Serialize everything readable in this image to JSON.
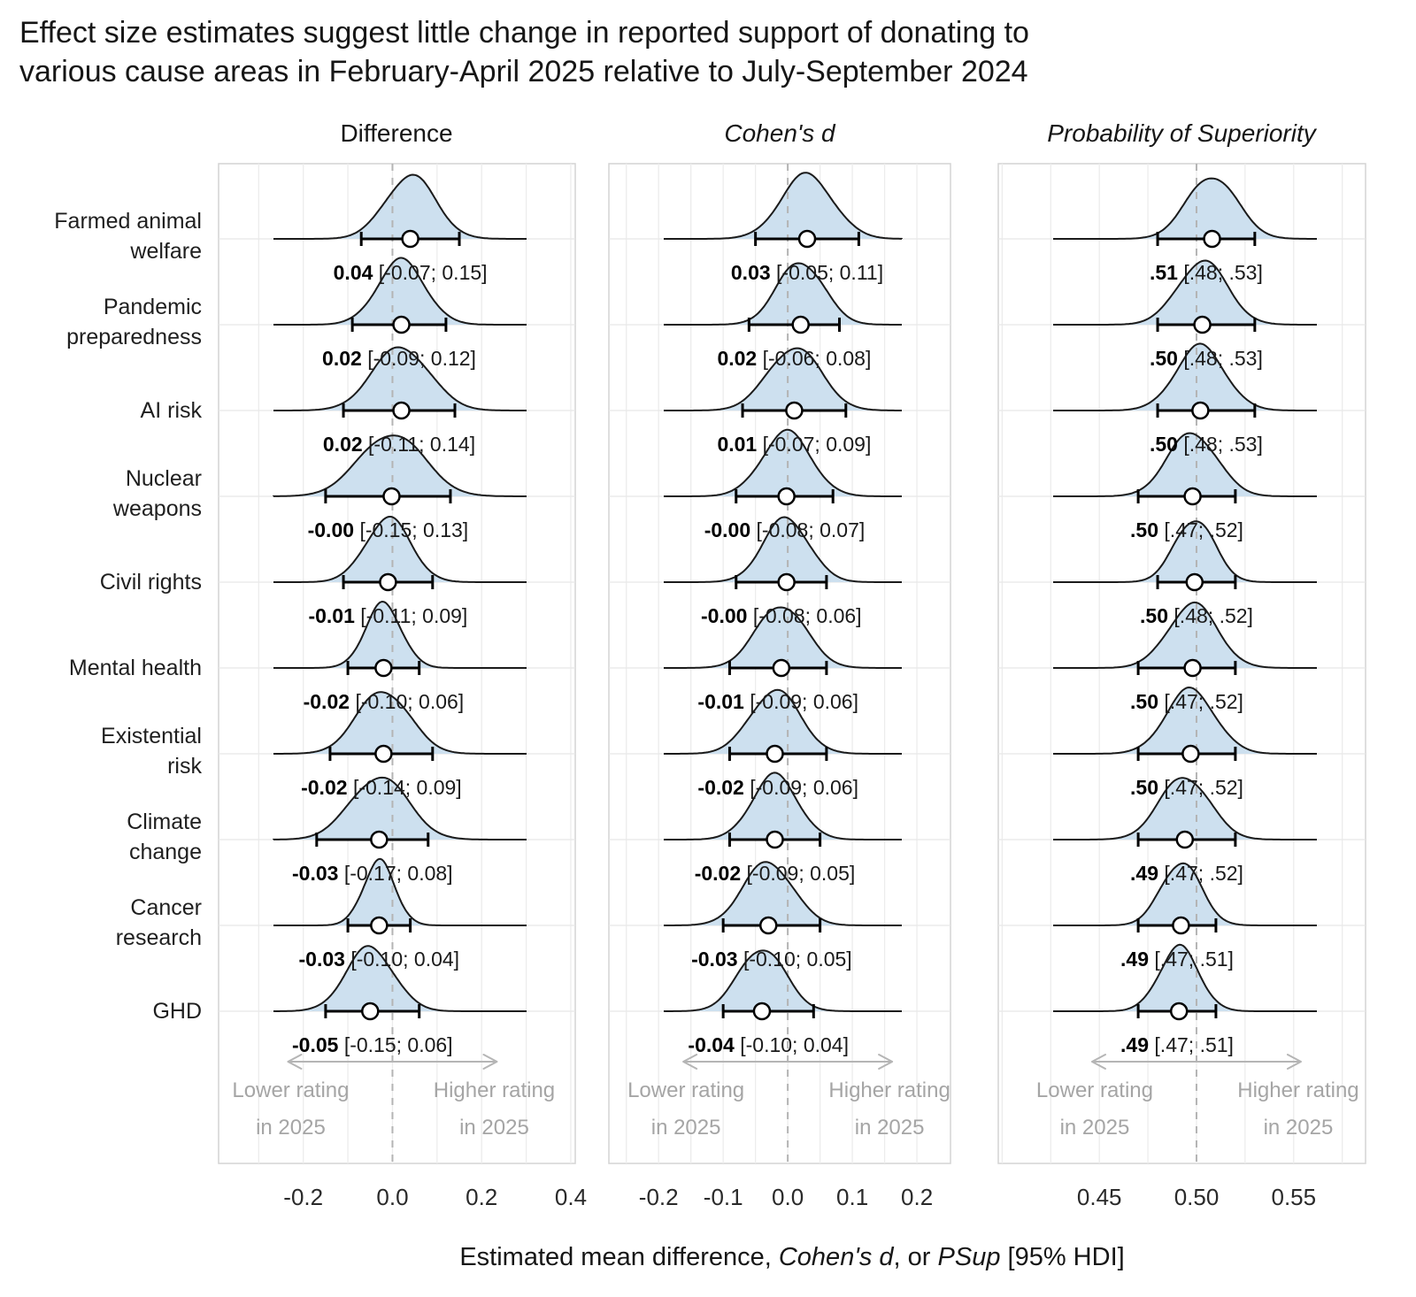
{
  "title": {
    "line1": "Effect size estimates suggest little change in reported support of donating to",
    "line2": "various cause areas in February-April 2025 relative to July-September 2024"
  },
  "axis_title": {
    "parts": [
      {
        "text": "Estimated mean difference, ",
        "italic": false
      },
      {
        "text": "Cohen's d",
        "italic": true
      },
      {
        "text": ", or ",
        "italic": false
      },
      {
        "text": "PSup",
        "italic": true
      },
      {
        "text": " [95% HDI]",
        "italic": false
      }
    ]
  },
  "annotations": {
    "lower_line1": "Lower rating",
    "lower_line2": "in 2025",
    "higher_line1": "Higher rating",
    "higher_line2": "in 2025"
  },
  "colors": {
    "density_fill": "#cde0ef",
    "density_stroke": "#1b1b1b",
    "dash_line": "#b4b4b4",
    "grid_minor": "#ececec",
    "grid_row": "#e8e8e8",
    "panel_border": "#d4d4d4",
    "annotation_gray": "#a5a5a5",
    "arrow_gray": "#b5b5b5",
    "text_dark": "#161616",
    "point_fill": "#ffffff"
  },
  "chart_data": {
    "type": "area",
    "subtype": "ridgeline-forest-plot",
    "title": "Effect size estimates suggest little change in reported support of donating to various cause areas in February-April 2025 relative to July-September 2024",
    "xlabel": "Estimated mean difference, Cohen's d, or PSup [95% HDI]",
    "legend_position": "none",
    "grid": true,
    "rows": [
      {
        "label_lines": [
          "Farmed animal",
          "welfare"
        ]
      },
      {
        "label_lines": [
          "Pandemic",
          "preparedness"
        ]
      },
      {
        "label_lines": [
          "AI risk"
        ]
      },
      {
        "label_lines": [
          "Nuclear",
          "weapons"
        ]
      },
      {
        "label_lines": [
          "Civil rights"
        ]
      },
      {
        "label_lines": [
          "Mental health"
        ]
      },
      {
        "label_lines": [
          "Existential",
          "risk"
        ]
      },
      {
        "label_lines": [
          "Climate",
          "change"
        ]
      },
      {
        "label_lines": [
          "Cancer",
          "research"
        ]
      },
      {
        "label_lines": [
          "GHD"
        ]
      }
    ],
    "panels": [
      {
        "title": "Difference",
        "title_italic": false,
        "axis": {
          "dash_at": 0,
          "minor_step": 0.1,
          "range": [
            -0.39,
            0.41
          ],
          "ticks": [
            {
              "v": -0.2,
              "label": "-0.2"
            },
            {
              "v": 0.0,
              "label": "0.0"
            },
            {
              "v": 0.2,
              "label": "0.2"
            },
            {
              "v": 0.4,
              "label": "0.4"
            }
          ]
        },
        "values": [
          {
            "est": 0.04,
            "lo": -0.07,
            "hi": 0.15,
            "est_label": "0.04",
            "ci_label": "[-0.07; 0.15]"
          },
          {
            "est": 0.02,
            "lo": -0.09,
            "hi": 0.12,
            "est_label": "0.02",
            "ci_label": "[-0.09; 0.12]"
          },
          {
            "est": 0.02,
            "lo": -0.11,
            "hi": 0.14,
            "est_label": "0.02",
            "ci_label": "[-0.11; 0.14]"
          },
          {
            "est": -0.002,
            "lo": -0.15,
            "hi": 0.13,
            "est_label": "-0.00",
            "ci_label": "[-0.15; 0.13]"
          },
          {
            "est": -0.01,
            "lo": -0.11,
            "hi": 0.09,
            "est_label": "-0.01",
            "ci_label": "[-0.11; 0.09]"
          },
          {
            "est": -0.02,
            "lo": -0.1,
            "hi": 0.06,
            "est_label": "-0.02",
            "ci_label": "[-0.10; 0.06]"
          },
          {
            "est": -0.02,
            "lo": -0.14,
            "hi": 0.09,
            "est_label": "-0.02",
            "ci_label": "[-0.14; 0.09]"
          },
          {
            "est": -0.03,
            "lo": -0.17,
            "hi": 0.08,
            "est_label": "-0.03",
            "ci_label": "[-0.17; 0.08]"
          },
          {
            "est": -0.03,
            "lo": -0.1,
            "hi": 0.04,
            "est_label": "-0.03",
            "ci_label": "[-0.10; 0.04]"
          },
          {
            "est": -0.05,
            "lo": -0.15,
            "hi": 0.06,
            "est_label": "-0.05",
            "ci_label": "[-0.15; 0.06]"
          }
        ]
      },
      {
        "title": "Cohen's d",
        "title_italic": true,
        "axis": {
          "dash_at": 0,
          "minor_step": 0.05,
          "range": [
            -0.277,
            0.252
          ],
          "ticks": [
            {
              "v": -0.2,
              "label": "-0.2"
            },
            {
              "v": -0.1,
              "label": "-0.1"
            },
            {
              "v": 0.0,
              "label": "0.0"
            },
            {
              "v": 0.1,
              "label": "0.1"
            },
            {
              "v": 0.2,
              "label": "0.2"
            }
          ]
        },
        "values": [
          {
            "est": 0.03,
            "lo": -0.05,
            "hi": 0.11,
            "est_label": "0.03",
            "ci_label": "[-0.05; 0.11]"
          },
          {
            "est": 0.02,
            "lo": -0.06,
            "hi": 0.08,
            "est_label": "0.02",
            "ci_label": "[-0.06; 0.08]"
          },
          {
            "est": 0.01,
            "lo": -0.07,
            "hi": 0.09,
            "est_label": "0.01",
            "ci_label": "[-0.07; 0.09]"
          },
          {
            "est": -0.002,
            "lo": -0.08,
            "hi": 0.07,
            "est_label": "-0.00",
            "ci_label": "[-0.08; 0.07]"
          },
          {
            "est": -0.002,
            "lo": -0.08,
            "hi": 0.06,
            "est_label": "-0.00",
            "ci_label": "[-0.08; 0.06]"
          },
          {
            "est": -0.01,
            "lo": -0.09,
            "hi": 0.06,
            "est_label": "-0.01",
            "ci_label": "[-0.09; 0.06]"
          },
          {
            "est": -0.02,
            "lo": -0.09,
            "hi": 0.06,
            "est_label": "-0.02",
            "ci_label": "[-0.09; 0.06]"
          },
          {
            "est": -0.02,
            "lo": -0.09,
            "hi": 0.05,
            "est_label": "-0.02",
            "ci_label": "[-0.09; 0.05]"
          },
          {
            "est": -0.03,
            "lo": -0.1,
            "hi": 0.05,
            "est_label": "-0.03",
            "ci_label": "[-0.10; 0.05]"
          },
          {
            "est": -0.04,
            "lo": -0.1,
            "hi": 0.04,
            "est_label": "-0.04",
            "ci_label": "[-0.10; 0.04]"
          }
        ]
      },
      {
        "title": "Probability of Superiority",
        "title_italic": true,
        "axis": {
          "dash_at": 0.5,
          "minor_step": 0.025,
          "range": [
            0.398,
            0.587
          ],
          "ticks": [
            {
              "v": 0.45,
              "label": "0.45"
            },
            {
              "v": 0.5,
              "label": "0.50"
            },
            {
              "v": 0.55,
              "label": "0.55"
            }
          ]
        },
        "values": [
          {
            "est": 0.508,
            "lo": 0.48,
            "hi": 0.53,
            "est_label": ".51",
            "ci_label": "[.48; .53]"
          },
          {
            "est": 0.503,
            "lo": 0.48,
            "hi": 0.53,
            "est_label": ".50",
            "ci_label": "[.48; .53]"
          },
          {
            "est": 0.502,
            "lo": 0.48,
            "hi": 0.53,
            "est_label": ".50",
            "ci_label": "[.48; .53]"
          },
          {
            "est": 0.498,
            "lo": 0.47,
            "hi": 0.52,
            "est_label": ".50",
            "ci_label": "[.47; .52]"
          },
          {
            "est": 0.499,
            "lo": 0.48,
            "hi": 0.52,
            "est_label": ".50",
            "ci_label": "[.48; .52]"
          },
          {
            "est": 0.498,
            "lo": 0.47,
            "hi": 0.52,
            "est_label": ".50",
            "ci_label": "[.47; .52]"
          },
          {
            "est": 0.497,
            "lo": 0.47,
            "hi": 0.52,
            "est_label": ".50",
            "ci_label": "[.47; .52]"
          },
          {
            "est": 0.494,
            "lo": 0.47,
            "hi": 0.52,
            "est_label": ".49",
            "ci_label": "[.47; .52]"
          },
          {
            "est": 0.492,
            "lo": 0.47,
            "hi": 0.51,
            "est_label": ".49",
            "ci_label": "[.47; .51]"
          },
          {
            "est": 0.491,
            "lo": 0.47,
            "hi": 0.51,
            "est_label": ".49",
            "ci_label": "[.47; .51]"
          }
        ]
      }
    ]
  }
}
